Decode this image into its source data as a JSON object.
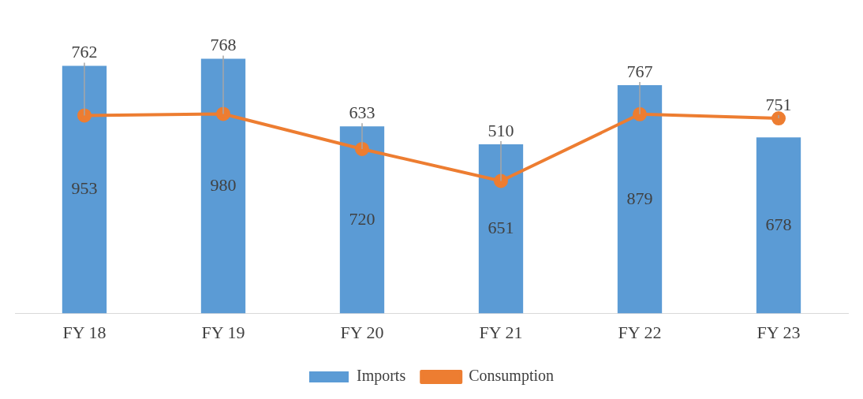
{
  "chart_data": {
    "type": "bar",
    "categories": [
      "FY 18",
      "FY 19",
      "FY 20",
      "FY 21",
      "FY 22",
      "FY 23"
    ],
    "series": [
      {
        "name": "Imports",
        "color": "#5b9bd5",
        "values": [
          953,
          980,
          720,
          651,
          879,
          678
        ]
      },
      {
        "name": "Consumption",
        "type": "line",
        "color": "#ed7d31",
        "values": [
          762,
          768,
          633,
          510,
          767,
          751
        ]
      }
    ],
    "tick_labels": "x",
    "data_labels": true,
    "legend": "bottom",
    "marker": "circle",
    "grid": false
  }
}
